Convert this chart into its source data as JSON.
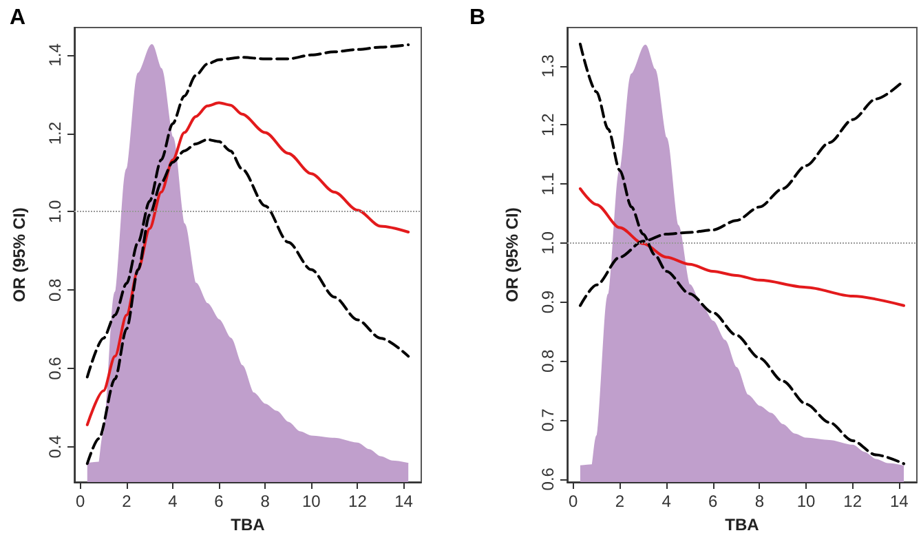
{
  "chart_data": [
    {
      "type": "line",
      "title": "A",
      "xlabel": "TBA",
      "ylabel": "OR (95% CI)",
      "xlim": [
        -0.26,
        14.76
      ],
      "ylim": [
        0.31,
        1.47
      ],
      "xticks": [
        0,
        2,
        4,
        6,
        8,
        10,
        12,
        14
      ],
      "yticks": [
        0.4,
        0.6,
        0.8,
        {
          "value": 1.0,
          "label": "1.0"
        },
        1.2,
        1.4
      ],
      "grid": false,
      "ref_lines": [
        {
          "axis": "y",
          "value": 1.0,
          "color": "#999999",
          "line_style": "dotted"
        }
      ],
      "series": [
        {
          "type": "area",
          "color": "#c09fcc",
          "x": [
            0.3,
            0.8,
            1.0,
            1.5,
            2.0,
            2.5,
            3.1,
            3.5,
            4.0,
            4.5,
            5.0,
            5.5,
            6.0,
            6.5,
            7.0,
            7.5,
            8.0,
            8.5,
            9.0,
            9.5,
            10.0,
            11.0,
            12.0,
            12.5,
            13.0,
            13.5,
            14.2
          ],
          "values": [
            0.357,
            0.36,
            0.433,
            0.794,
            1.109,
            1.353,
            1.426,
            1.365,
            1.19,
            0.969,
            0.817,
            0.765,
            0.724,
            0.677,
            0.607,
            0.537,
            0.508,
            0.49,
            0.462,
            0.438,
            0.427,
            0.421,
            0.409,
            0.392,
            0.374,
            0.363,
            0.357
          ]
        },
        {
          "type": "line",
          "color": "#e31a1c",
          "line_style": "solid",
          "x": [
            0.3,
            1,
            1.5,
            2,
            2.5,
            3,
            3.5,
            4,
            4.5,
            5,
            5.5,
            6,
            6.5,
            7,
            8,
            9,
            10,
            11,
            12,
            13,
            14.2
          ],
          "values": [
            0.456,
            0.543,
            0.631,
            0.736,
            0.852,
            0.957,
            1.05,
            1.132,
            1.202,
            1.243,
            1.27,
            1.278,
            1.272,
            1.249,
            1.202,
            1.149,
            1.097,
            1.05,
            1.004,
            0.963,
            0.948
          ]
        },
        {
          "type": "line",
          "color": "#000000",
          "line_style": "dashed",
          "x": [
            0.3,
            1,
            1.5,
            2,
            2.5,
            3,
            3.5,
            4,
            4.5,
            5,
            5.5,
            6,
            7,
            8,
            9,
            10,
            11,
            12,
            13,
            14.2
          ],
          "values": [
            0.578,
            0.677,
            0.736,
            0.817,
            0.922,
            1.027,
            1.132,
            1.225,
            1.295,
            1.348,
            1.377,
            1.388,
            1.394,
            1.39,
            1.39,
            1.4,
            1.408,
            1.414,
            1.42,
            1.426
          ]
        },
        {
          "type": "line",
          "color": "#000000",
          "line_style": "dashed",
          "x": [
            0.3,
            0.8,
            1.5,
            2,
            2.5,
            3,
            3.5,
            4,
            4.5,
            5,
            5.5,
            6,
            6.5,
            7,
            8,
            9,
            10,
            11,
            12,
            13,
            14.2
          ],
          "values": [
            0.357,
            0.421,
            0.573,
            0.701,
            0.852,
            0.992,
            1.074,
            1.126,
            1.155,
            1.173,
            1.184,
            1.179,
            1.155,
            1.109,
            1.015,
            0.922,
            0.852,
            0.782,
            0.724,
            0.677,
            0.631
          ]
        }
      ]
    },
    {
      "type": "line",
      "title": "B",
      "xlabel": "TBA",
      "ylabel": "OR (95% CI)",
      "xlim": [
        -0.26,
        14.76
      ],
      "ylim": [
        0.595,
        1.365
      ],
      "xticks": [
        0,
        2,
        4,
        6,
        8,
        10,
        12,
        14
      ],
      "yticks": [
        0.6,
        0.7,
        0.8,
        0.9,
        {
          "value": 1.0,
          "label": "1.0"
        },
        1.1,
        1.2,
        1.3
      ],
      "grid": false,
      "ref_lines": [
        {
          "axis": "y",
          "value": 1.0,
          "color": "#999999",
          "line_style": "dotted"
        }
      ],
      "series": [
        {
          "type": "area",
          "color": "#c09fcc",
          "x": [
            0.3,
            0.8,
            1.0,
            1.5,
            2.0,
            2.5,
            3.1,
            3.5,
            4.0,
            4.5,
            5.0,
            5.5,
            6.0,
            6.5,
            7.0,
            7.5,
            8.0,
            8.5,
            9.0,
            9.5,
            10.0,
            11.0,
            12.0,
            12.5,
            13.0,
            13.5,
            14.2
          ],
          "values": [
            0.622,
            0.624,
            0.673,
            0.913,
            1.124,
            1.286,
            1.335,
            1.294,
            1.178,
            1.03,
            0.929,
            0.894,
            0.867,
            0.835,
            0.789,
            0.742,
            0.723,
            0.711,
            0.692,
            0.676,
            0.669,
            0.665,
            0.657,
            0.645,
            0.633,
            0.626,
            0.622
          ]
        },
        {
          "type": "line",
          "color": "#e31a1c",
          "line_style": "solid",
          "x": [
            0.3,
            1,
            2,
            3,
            4,
            5,
            6,
            7,
            8,
            10,
            12,
            14.2
          ],
          "values": [
            1.092,
            1.065,
            1.026,
            0.999,
            0.976,
            0.964,
            0.952,
            0.945,
            0.937,
            0.925,
            0.91,
            0.894
          ]
        },
        {
          "type": "line",
          "color": "#000000",
          "line_style": "dashed",
          "x": [
            0.3,
            1,
            2,
            3,
            4,
            5,
            6,
            7,
            8,
            9,
            10,
            11,
            12,
            13,
            14.2
          ],
          "values": [
            0.894,
            0.929,
            0.976,
            1.003,
            1.015,
            1.018,
            1.022,
            1.038,
            1.061,
            1.092,
            1.131,
            1.17,
            1.209,
            1.244,
            1.275
          ]
        },
        {
          "type": "line",
          "color": "#000000",
          "line_style": "dashed",
          "x": [
            0.3,
            1,
            1.5,
            2,
            2.5,
            3,
            3.5,
            4,
            5,
            6,
            7,
            8,
            9,
            10,
            11,
            12,
            13,
            14.2
          ],
          "values": [
            1.337,
            1.256,
            1.193,
            1.123,
            1.061,
            1.015,
            0.98,
            0.952,
            0.914,
            0.882,
            0.844,
            0.805,
            0.766,
            0.727,
            0.696,
            0.665,
            0.641,
            0.626
          ]
        }
      ]
    }
  ]
}
